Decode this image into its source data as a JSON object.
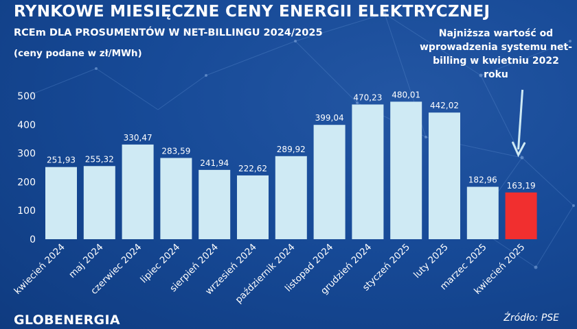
{
  "title": "RYNKOWE MIESIĘCZNE CENY ENERGII ELEKTRYCZNEJ",
  "subtitle": "RCEm DLA PROSUMENTÓW W NET-BILLINGU 2024/2025",
  "units_note": "(ceny podane w zł/MWh)",
  "annotation": "Najniższa wartość od wprowadzenia systemu net-billing w kwietniu 2022 roku",
  "brand": "GLOBENERGIA",
  "source": "Źródło: PSE",
  "colors": {
    "bar": "#cfeaf4",
    "highlight": "#f12f2f",
    "background": "#174a97",
    "text": "#ffffff"
  },
  "chart_data": {
    "type": "bar",
    "categories": [
      "kwiecień 2024",
      "maj 2024",
      "czerwiec 2024",
      "lipiec 2024",
      "sierpień 2024",
      "wrzesień 2024",
      "październik 2024",
      "listopad 2024",
      "grudzień 2024",
      "styczeń 2025",
      "luty 2025",
      "marzec 2025",
      "kwiecień 2025"
    ],
    "values": [
      251.93,
      255.32,
      330.47,
      283.59,
      241.94,
      222.62,
      289.92,
      399.04,
      470.23,
      480.01,
      442.02,
      182.96,
      163.19
    ],
    "value_labels": [
      "251,93",
      "255,32",
      "330,47",
      "283,59",
      "241,94",
      "222,62",
      "289,92",
      "399,04",
      "470,23",
      "480,01",
      "442,02",
      "182,96",
      "163,19"
    ],
    "highlight_index": 12,
    "ylim": [
      0,
      500
    ],
    "yticks": [
      0,
      100,
      200,
      300,
      400,
      500
    ],
    "title": "RYNKOWE MIESIĘCZNE CENY ENERGII ELEKTRYCZNEJ",
    "xlabel": "",
    "ylabel": "",
    "grid": false
  }
}
